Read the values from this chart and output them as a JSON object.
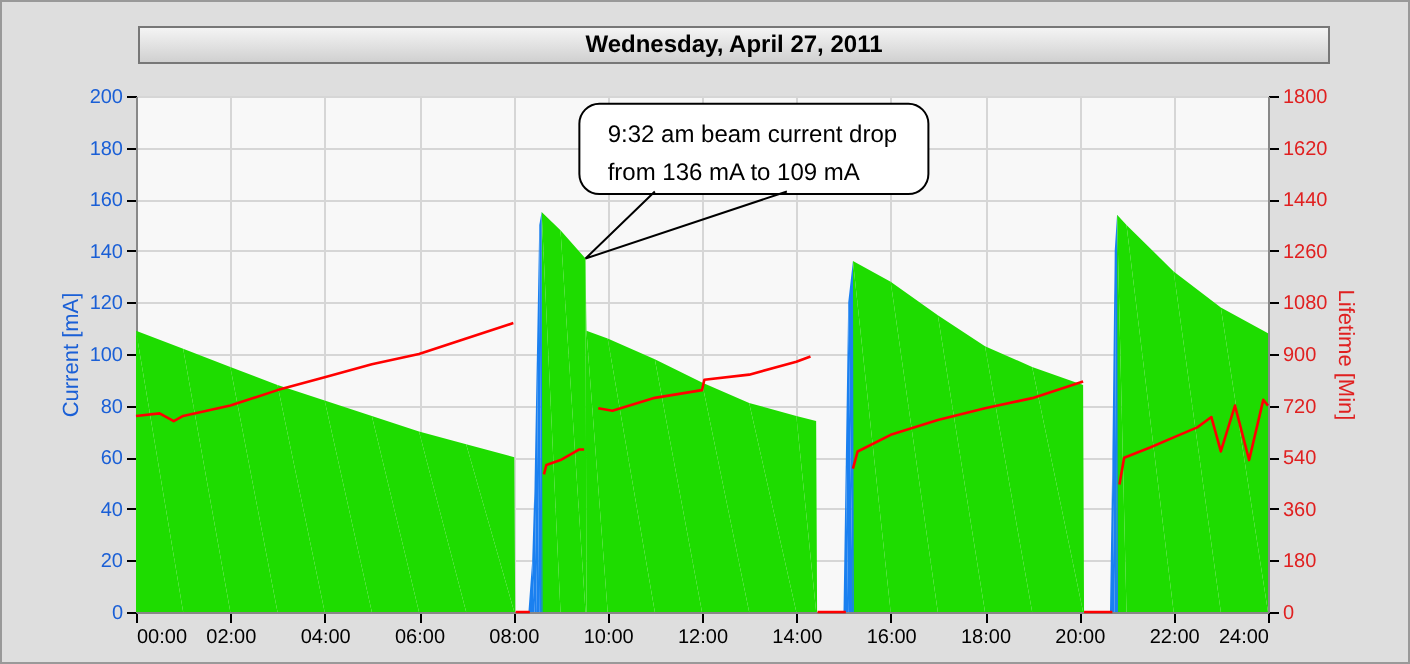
{
  "chart_data": {
    "type": "area",
    "title": "Wednesday, April 27, 2011",
    "ylabel": "Current [mA]",
    "y2label": "Lifetime [Min]",
    "annotations": [
      "9:32 am beam current drop\nfrom 136 mA to 109 mA"
    ],
    "xlim": [
      0,
      24
    ],
    "xticks": [
      {
        "value": 0,
        "label": "00:00"
      },
      {
        "value": 2,
        "label": "02:00"
      },
      {
        "value": 4,
        "label": "04:00"
      },
      {
        "value": 6,
        "label": "06:00"
      },
      {
        "value": 8,
        "label": "08:00"
      },
      {
        "value": 10,
        "label": "10:00"
      },
      {
        "value": 12,
        "label": "12:00"
      },
      {
        "value": 14,
        "label": "14:00"
      },
      {
        "value": 16,
        "label": "16:00"
      },
      {
        "value": 18,
        "label": "18:00"
      },
      {
        "value": 20,
        "label": "20:00"
      },
      {
        "value": 22,
        "label": "22:00"
      },
      {
        "value": 24,
        "label": "24:00"
      }
    ],
    "ylim": [
      0,
      200
    ],
    "yticks": [
      0,
      20,
      40,
      60,
      80,
      100,
      120,
      140,
      160,
      180,
      200
    ],
    "y2lim": [
      0,
      1800
    ],
    "y2ticks": [
      0,
      180,
      360,
      540,
      720,
      900,
      1080,
      1260,
      1440,
      1620,
      1800
    ],
    "grid": true,
    "series": [
      {
        "color": "#1edc00",
        "x": [
          0,
          1,
          2,
          3,
          4,
          5,
          6,
          7,
          8.02,
          8.04,
          8.58,
          8.6,
          9,
          9.53,
          9.55,
          10,
          11,
          12,
          13,
          14,
          14.42,
          14.44,
          15.18,
          15.2,
          16,
          17,
          18,
          19,
          20.08,
          20.1,
          20.78,
          20.8,
          21,
          22,
          23,
          24
        ],
        "values": [
          109,
          102,
          95,
          88,
          82,
          76,
          70,
          65,
          60,
          0,
          0,
          155,
          148,
          137,
          109,
          106,
          98,
          89,
          81,
          76,
          74,
          0,
          0,
          136,
          128,
          115,
          103,
          95,
          88,
          0,
          0,
          154,
          150,
          132,
          118,
          108
        ]
      },
      {
        "color": "#1a80f0",
        "x": [
          8.32,
          8.4,
          8.45,
          8.5,
          8.55,
          8.6,
          8.62,
          15.0,
          15.05,
          15.1,
          15.2,
          15.22,
          20.65,
          20.7,
          20.75,
          20.8,
          20.82
        ],
        "values": [
          0,
          20,
          50,
          100,
          150,
          155,
          0,
          0,
          60,
          120,
          136,
          0,
          0,
          60,
          140,
          154,
          0
        ]
      },
      {
        "type": "line",
        "axis": "y2",
        "color": "#ff0000",
        "x": [
          0,
          0.5,
          0.8,
          1,
          2,
          3,
          4,
          5,
          6,
          7,
          8.0,
          8.03,
          8.05,
          8.35,
          8.45,
          8.65,
          8.7,
          9,
          9.4,
          9.5,
          9.65,
          9.8,
          10.1,
          11,
          12,
          12.05,
          13,
          14,
          14.3,
          14.38,
          14.45,
          15.05,
          15.1,
          15.2,
          15.3,
          16,
          17,
          18,
          19,
          20.08,
          20.09,
          20.1,
          20.7,
          20.75,
          20.85,
          20.95,
          21.5,
          22,
          22.5,
          22.8,
          23,
          23.3,
          23.6,
          23.9,
          24
        ],
        "values": [
          684,
          693,
          666,
          684,
          720,
          774,
          819,
          864,
          900,
          954,
          1008,
          null,
          0,
          0,
          null,
          480,
          513,
          530,
          567,
          567,
          null,
          711,
          702,
          747,
          774,
          810,
          828,
          873,
          891,
          null,
          0,
          0,
          null,
          500,
          560,
          618,
          670,
          711,
          746,
          804,
          null,
          0,
          0,
          null,
          445,
          538,
          574,
          609,
          644,
          680,
          560,
          720,
          530,
          740,
          720
        ]
      }
    ]
  }
}
